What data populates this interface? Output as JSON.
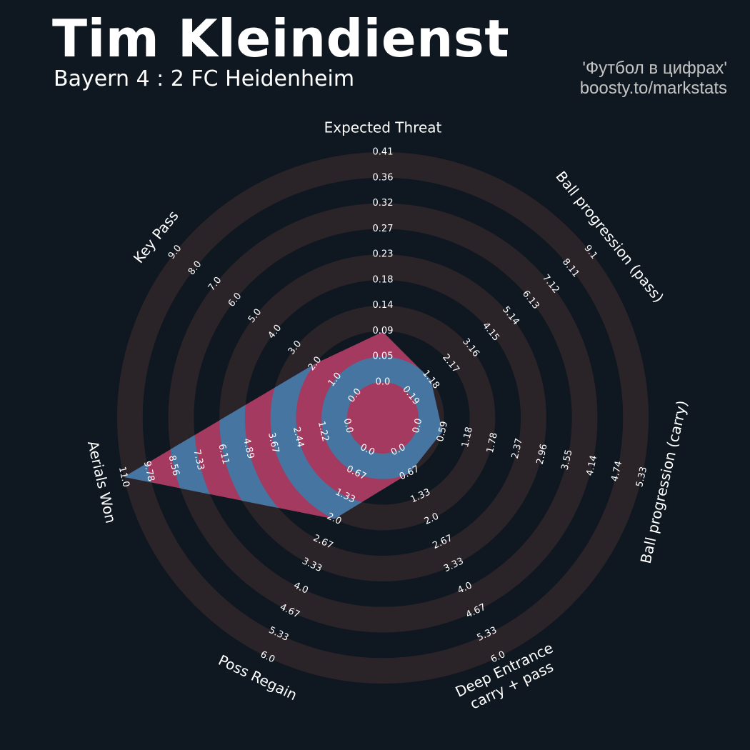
{
  "header": {
    "title": "Tim Kleindienst",
    "subtitle": "Bayern 4 : 2 FC Heidenheim",
    "credit_line1": "'Футбол в цифрах'",
    "credit_line2": "boosty.to/markstats"
  },
  "colors": {
    "background": "#0f1720",
    "ring": "#2a2429",
    "player_fill_outer": "#a43a60",
    "player_fill_inner": "#4575a0",
    "text": "#ffffff"
  },
  "chart_data": {
    "type": "radar",
    "title": "Tim Kleindienst",
    "subtitle": "Bayern 4 : 2 FC Heidenheim",
    "parameters": [
      {
        "name": "Expected Threat",
        "label_lines": [
          "Expected Threat"
        ],
        "ticks": [
          "0.0",
          "0.05",
          "0.09",
          "0.14",
          "0.18",
          "0.23",
          "0.27",
          "0.32",
          "0.36",
          "0.41"
        ],
        "value": 0.09
      },
      {
        "name": "Ball progression (pass)",
        "label_lines": [
          "Ball progression (pass)"
        ],
        "ticks": [
          "0.19",
          "1.18",
          "2.17",
          "3.16",
          "4.15",
          "5.14",
          "6.13",
          "7.12",
          "8.11",
          "9.1"
        ],
        "value": 1.18
      },
      {
        "name": "Ball progression (carry)",
        "label_lines": [
          "Ball progression (carry)"
        ],
        "ticks": [
          "0.0",
          "0.59",
          "1.18",
          "1.78",
          "2.37",
          "2.96",
          "3.55",
          "4.14",
          "4.74",
          "5.33"
        ],
        "value": 0.59
      },
      {
        "name": "Deep Entrance carry + pass",
        "label_lines": [
          "Deep Entrance",
          "carry + pass"
        ],
        "ticks": [
          "0.0",
          "0.67",
          "1.33",
          "2.0",
          "2.67",
          "3.33",
          "4.0",
          "4.67",
          "5.33",
          "6.0"
        ],
        "value": 0.67
      },
      {
        "name": "Poss Regain",
        "label_lines": [
          "Poss Regain"
        ],
        "ticks": [
          "0.0",
          "0.67",
          "1.33",
          "2.0",
          "2.67",
          "3.33",
          "4.0",
          "4.67",
          "5.33",
          "6.0"
        ],
        "value": 2.0
      },
      {
        "name": "Aerials Won",
        "label_lines": [
          "Aerials Won"
        ],
        "ticks": [
          "0.0",
          "1.22",
          "2.44",
          "3.67",
          "4.89",
          "6.11",
          "7.33",
          "8.56",
          "9.78",
          "11.0"
        ],
        "value": 11.0
      },
      {
        "name": "Key Pass",
        "label_lines": [
          "Key Pass"
        ],
        "ticks": [
          "0.0",
          "1.0",
          "2.0",
          "3.0",
          "4.0",
          "5.0",
          "6.0",
          "7.0",
          "8.0",
          "9.0"
        ],
        "value": 2.0
      }
    ],
    "grid": true,
    "legend": "none"
  }
}
